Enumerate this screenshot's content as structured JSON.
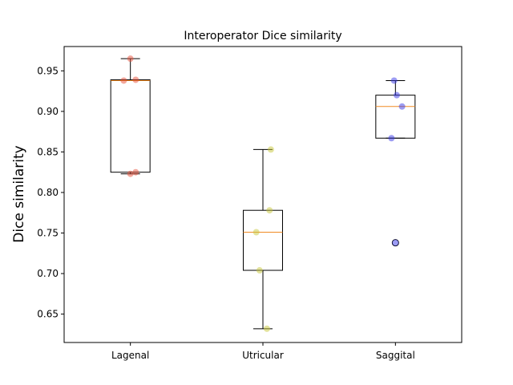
{
  "chart_data": {
    "type": "box",
    "title": "Interoperator Dice similarity",
    "xlabel": "",
    "ylabel": "Dice similarity",
    "categories": [
      "Lagenal",
      "Utricular",
      "Saggital"
    ],
    "ylim": [
      0.615,
      0.98
    ],
    "yticks": [
      0.65,
      0.7,
      0.75,
      0.8,
      0.85,
      0.9,
      0.95
    ],
    "ytick_labels": [
      "0.65",
      "0.70",
      "0.75",
      "0.80",
      "0.85",
      "0.90",
      "0.95"
    ],
    "grid": false,
    "boxes": [
      {
        "category": "Lagenal",
        "whisker_low": 0.823,
        "q1": 0.825,
        "median": 0.938,
        "q3": 0.939,
        "whisker_high": 0.965,
        "outliers": []
      },
      {
        "category": "Utricular",
        "whisker_low": 0.632,
        "q1": 0.704,
        "median": 0.751,
        "q3": 0.778,
        "whisker_high": 0.853,
        "outliers": []
      },
      {
        "category": "Saggital",
        "whisker_low": 0.867,
        "q1": 0.867,
        "median": 0.906,
        "q3": 0.92,
        "whisker_high": 0.938,
        "outliers": [
          0.738
        ]
      }
    ],
    "points": [
      {
        "category": "Lagenal",
        "values": [
          0.965,
          0.938,
          0.939,
          0.823,
          0.825
        ],
        "jitter": [
          0.0,
          -0.1,
          0.08,
          0.0,
          0.08
        ],
        "color": "#e8503a"
      },
      {
        "category": "Utricular",
        "values": [
          0.853,
          0.778,
          0.751,
          0.704,
          0.632
        ],
        "jitter": [
          0.12,
          0.1,
          -0.1,
          -0.05,
          0.06
        ],
        "color": "#c8c83a"
      },
      {
        "category": "Saggital",
        "values": [
          0.938,
          0.92,
          0.906,
          0.867,
          0.738
        ],
        "jitter": [
          -0.02,
          0.02,
          0.1,
          -0.06,
          0.0
        ],
        "color": "#3a3ae8"
      }
    ],
    "colors": {
      "box": "#000000",
      "median": "#f08a24"
    }
  }
}
